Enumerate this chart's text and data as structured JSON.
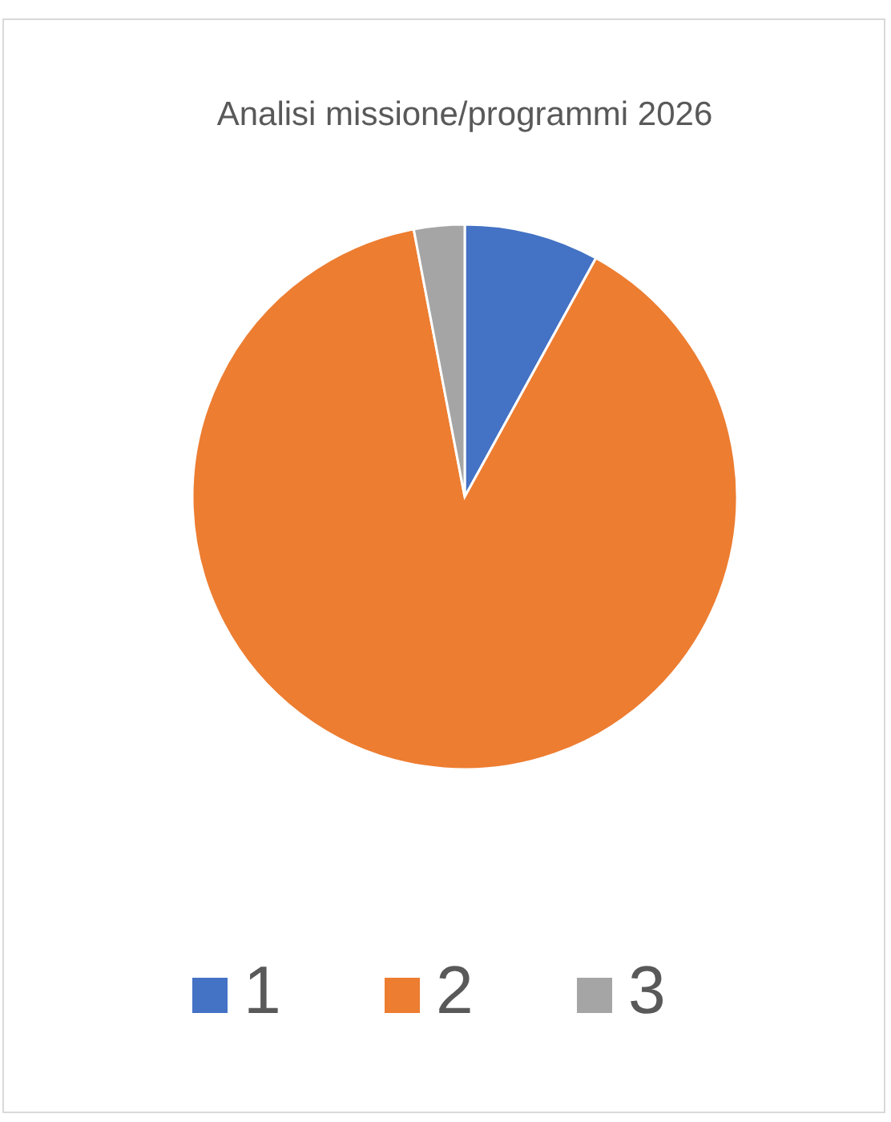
{
  "chart_data": {
    "type": "pie",
    "title": "Analisi missione/programmi 2026",
    "categories": [
      "1",
      "2",
      "3"
    ],
    "values": [
      8,
      89,
      3
    ],
    "colors": [
      "#4472c4",
      "#ed7d31",
      "#a5a5a5"
    ],
    "legend": "bottom"
  }
}
